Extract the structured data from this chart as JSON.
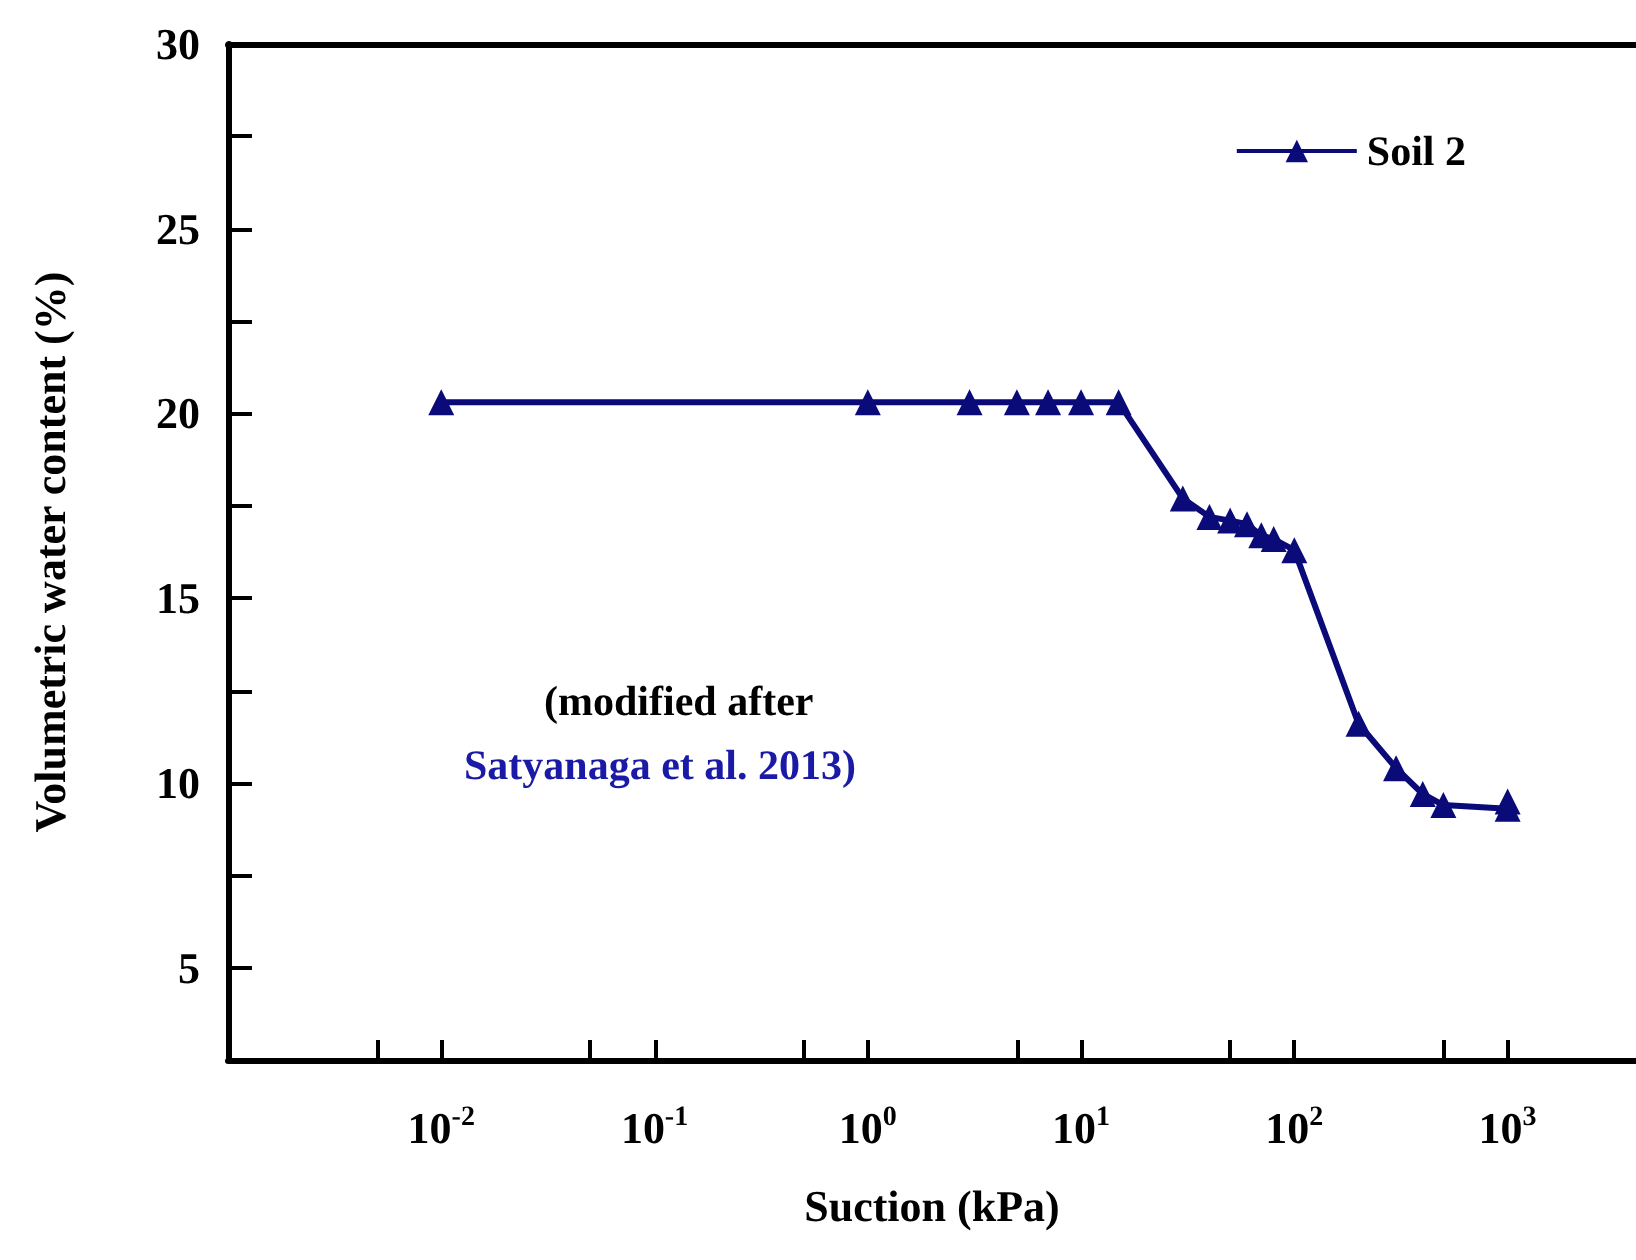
{
  "chart_data": {
    "type": "line",
    "xlabel": "Suction (kPa)",
    "ylabel": "Volumetric water content (%)",
    "annotations": [
      "(modified after",
      "Satyanaga et al. 2013)"
    ],
    "x": [
      0.01,
      1,
      3,
      5,
      7,
      10,
      15,
      30,
      40,
      50,
      60,
      70,
      80,
      100,
      200,
      300,
      400,
      500,
      1000,
      1000
    ],
    "series": [
      {
        "name": "Soil 2",
        "color": "#0a0a78",
        "values": [
          20.3,
          20.3,
          20.3,
          20.3,
          20.3,
          20.3,
          20.3,
          17.7,
          17.2,
          17.1,
          17.0,
          16.7,
          16.6,
          16.3,
          11.6,
          10.4,
          9.7,
          9.4,
          9.3,
          9.5
        ]
      }
    ],
    "log": "x",
    "xlim": [
      0.001,
      4000
    ],
    "xticks": [
      {
        "value": 0.005,
        "label": null
      },
      {
        "value": 0.01,
        "label": "10$^{-2}$"
      },
      {
        "value": 0.05,
        "label": null
      },
      {
        "value": 0.1,
        "label": "10$^{-1}$"
      },
      {
        "value": 0.5,
        "label": null
      },
      {
        "value": 1,
        "label": "10$^{0}$"
      },
      {
        "value": 5,
        "label": null
      },
      {
        "value": 10,
        "label": "10$^{1}$"
      },
      {
        "value": 50,
        "label": null
      },
      {
        "value": 100,
        "label": "10$^{2}$"
      },
      {
        "value": 500,
        "label": null
      },
      {
        "value": 1000,
        "label": "10$^{3}$"
      }
    ],
    "ylim": [
      2.5,
      30
    ],
    "yticks": [
      5,
      {
        "value": 7.5,
        "label": null
      },
      10,
      {
        "value": 12.5,
        "label": null
      },
      15,
      {
        "value": 17.5,
        "label": null
      },
      20,
      {
        "value": 22.5,
        "label": null
      },
      25,
      {
        "value": 27.5,
        "label": null
      },
      30
    ],
    "grid": false,
    "legend": "top right",
    "marker": "triangle",
    "line_style": "solid"
  }
}
